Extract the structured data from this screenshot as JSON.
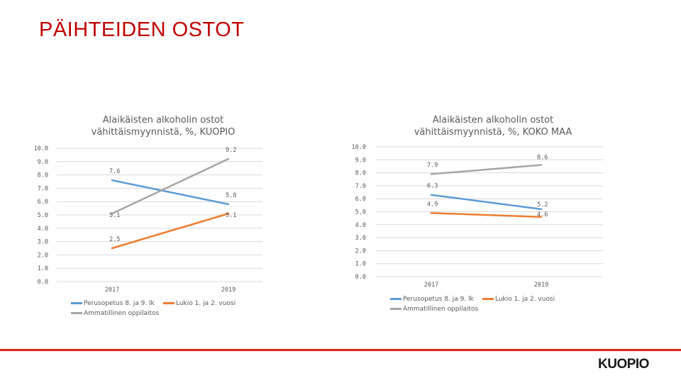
{
  "page": {
    "title": "PÄIHTEIDEN OSTOT",
    "logo": "KUOPIO"
  },
  "colors": {
    "accent": "#e2231a",
    "title": "#c00000"
  },
  "chart_data": [
    {
      "id": "kuopio",
      "type": "line",
      "title_line1": "Alaikäisten alkoholin ostot",
      "title_line2": "vähittäismyynnistä, %, KUOPIO",
      "categories": [
        "2017",
        "2019"
      ],
      "ylim": [
        0,
        10
      ],
      "yticks": [
        "0.0",
        "1.0",
        "2.0",
        "3.0",
        "4.0",
        "5.0",
        "6.0",
        "7.0",
        "8.0",
        "9.0",
        "10.0"
      ],
      "series": [
        {
          "name": "Perusopetus 8. ja 9. lk",
          "color": "#5b9bd5",
          "values": [
            7.6,
            5.8
          ],
          "labels": [
            "7.6",
            "5.8"
          ]
        },
        {
          "name": "Lukio 1. ja 2. vuosi",
          "color": "#ed7d31",
          "values": [
            2.5,
            5.1
          ],
          "labels": [
            "2.5",
            "5.1"
          ]
        },
        {
          "name": "Ammatillinen oppilaitos",
          "color": "#a5a5a5",
          "values": [
            5.1,
            9.2
          ],
          "labels": [
            "5.1",
            "9.2"
          ]
        }
      ]
    },
    {
      "id": "koko-maa",
      "type": "line",
      "title_line1": "Alaikäisten alkoholin ostot",
      "title_line2": "vähittäismyynnistä, %, KOKO MAA",
      "categories": [
        "2017",
        "2019"
      ],
      "ylim": [
        0,
        10
      ],
      "yticks": [
        "0.0",
        "1.0",
        "2.0",
        "3.0",
        "4.0",
        "5.0",
        "6.0",
        "7.0",
        "8.0",
        "9.0",
        "10.0"
      ],
      "series": [
        {
          "name": "Perusopetus 8. ja 9. lk",
          "color": "#5b9bd5",
          "values": [
            6.3,
            5.2
          ],
          "labels": [
            "6.3",
            "5.2"
          ]
        },
        {
          "name": "Lukio 1. ja 2. vuosi",
          "color": "#ed7d31",
          "values": [
            4.9,
            4.6
          ],
          "labels": [
            "4.9",
            "4.6"
          ]
        },
        {
          "name": "Ammatillinen oppilaitos",
          "color": "#a5a5a5",
          "values": [
            7.9,
            8.6
          ],
          "labels": [
            "7.9",
            "8.6"
          ]
        }
      ]
    }
  ]
}
